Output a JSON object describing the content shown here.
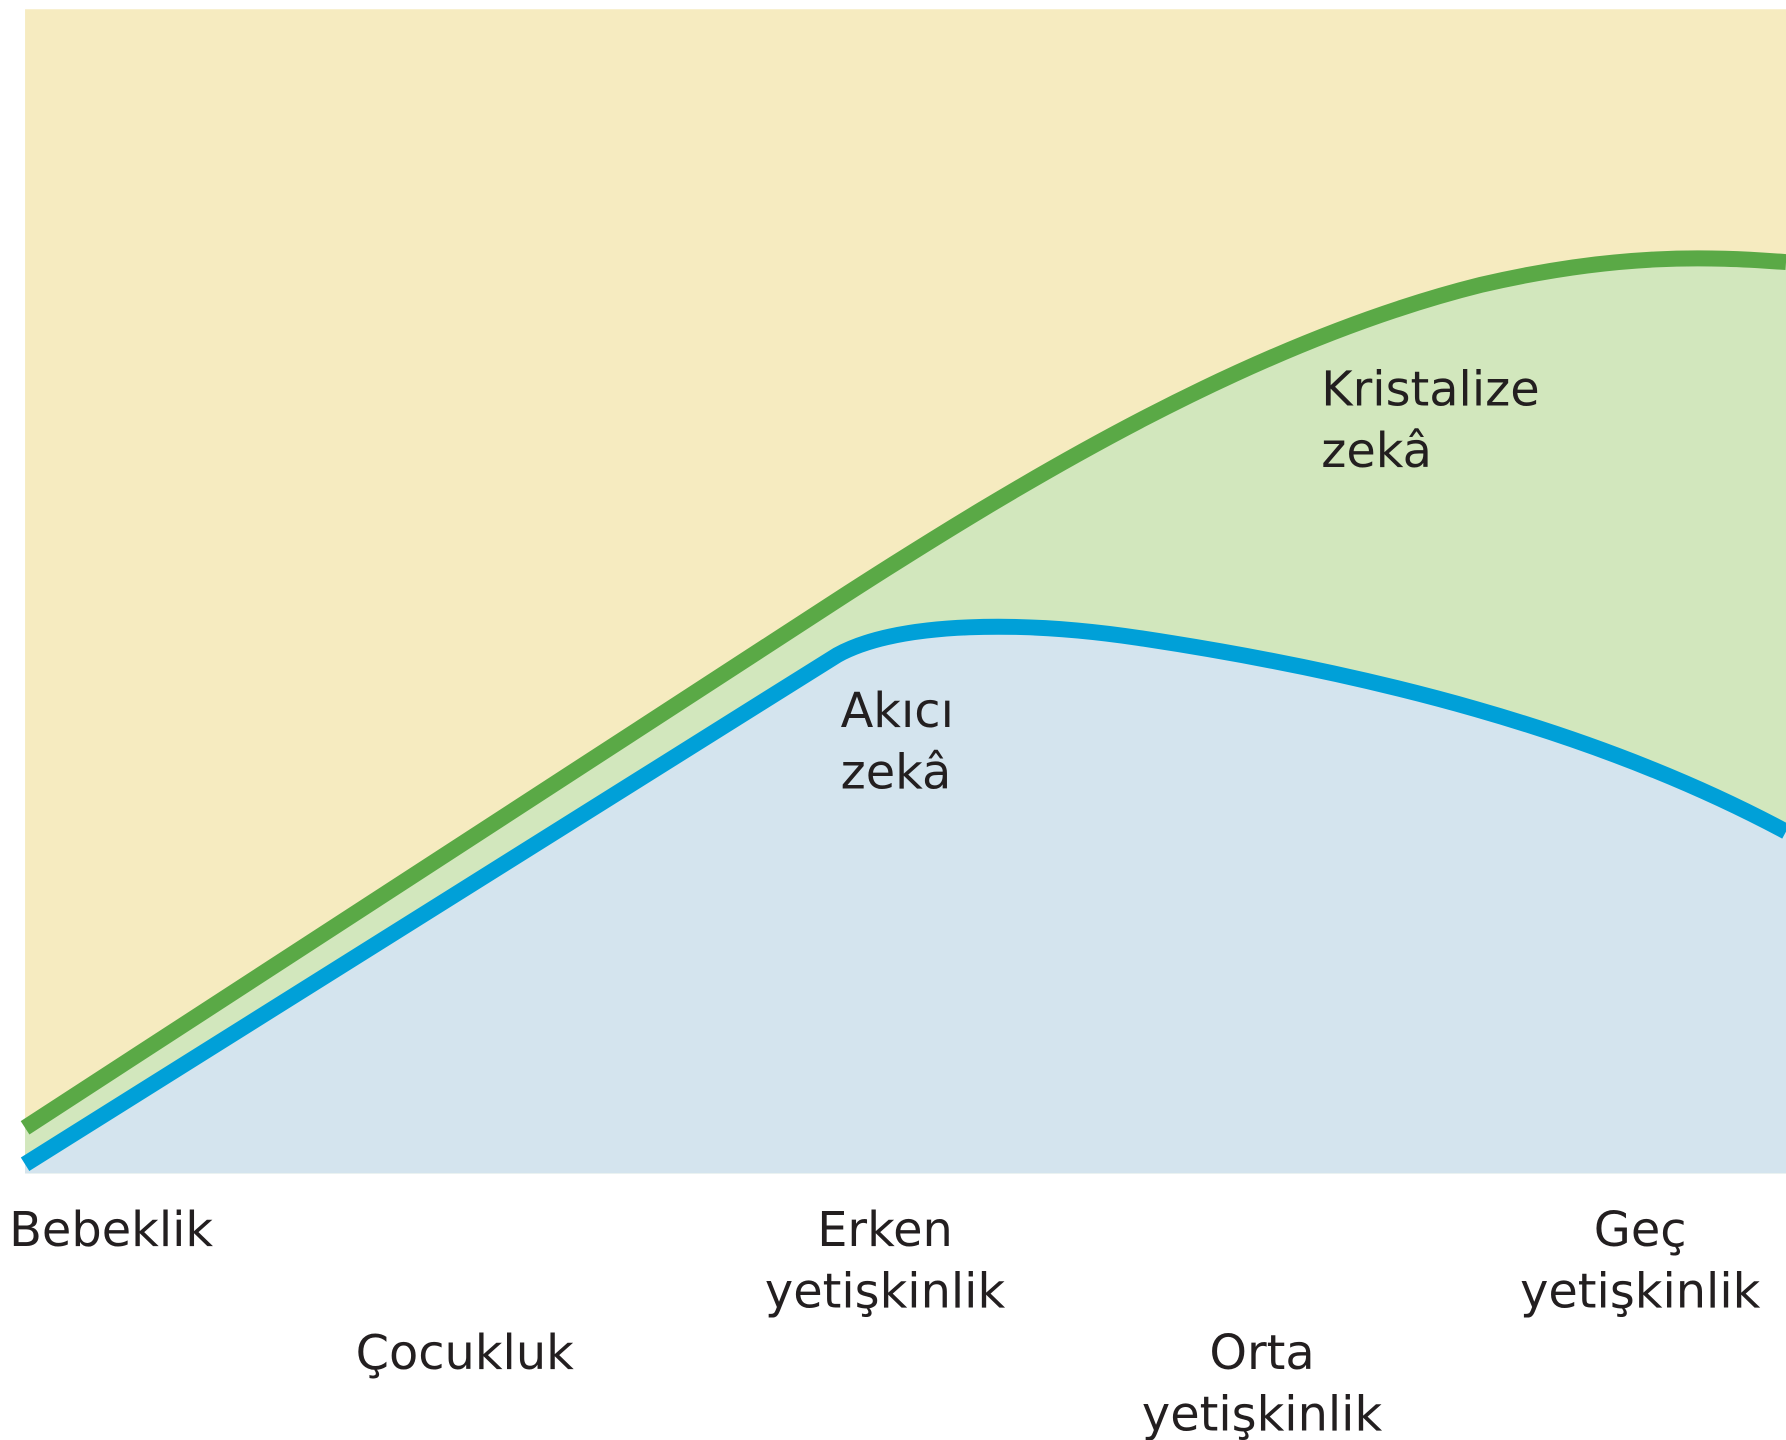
{
  "curves": [
    {
      "label": [
        "Kristalize",
        "zekâ"
      ]
    },
    {
      "label": [
        "Akıcı",
        "zekâ"
      ]
    }
  ],
  "stages": [
    {
      "label": [
        "Bebeklik"
      ]
    },
    {
      "label": [
        "Çocukluk"
      ]
    },
    {
      "label": [
        "Erken",
        "yetişkinlik"
      ]
    },
    {
      "label": [
        "Orta",
        "yetişkinlik"
      ]
    },
    {
      "label": [
        "Geç",
        "yetişkinlik"
      ]
    }
  ]
}
